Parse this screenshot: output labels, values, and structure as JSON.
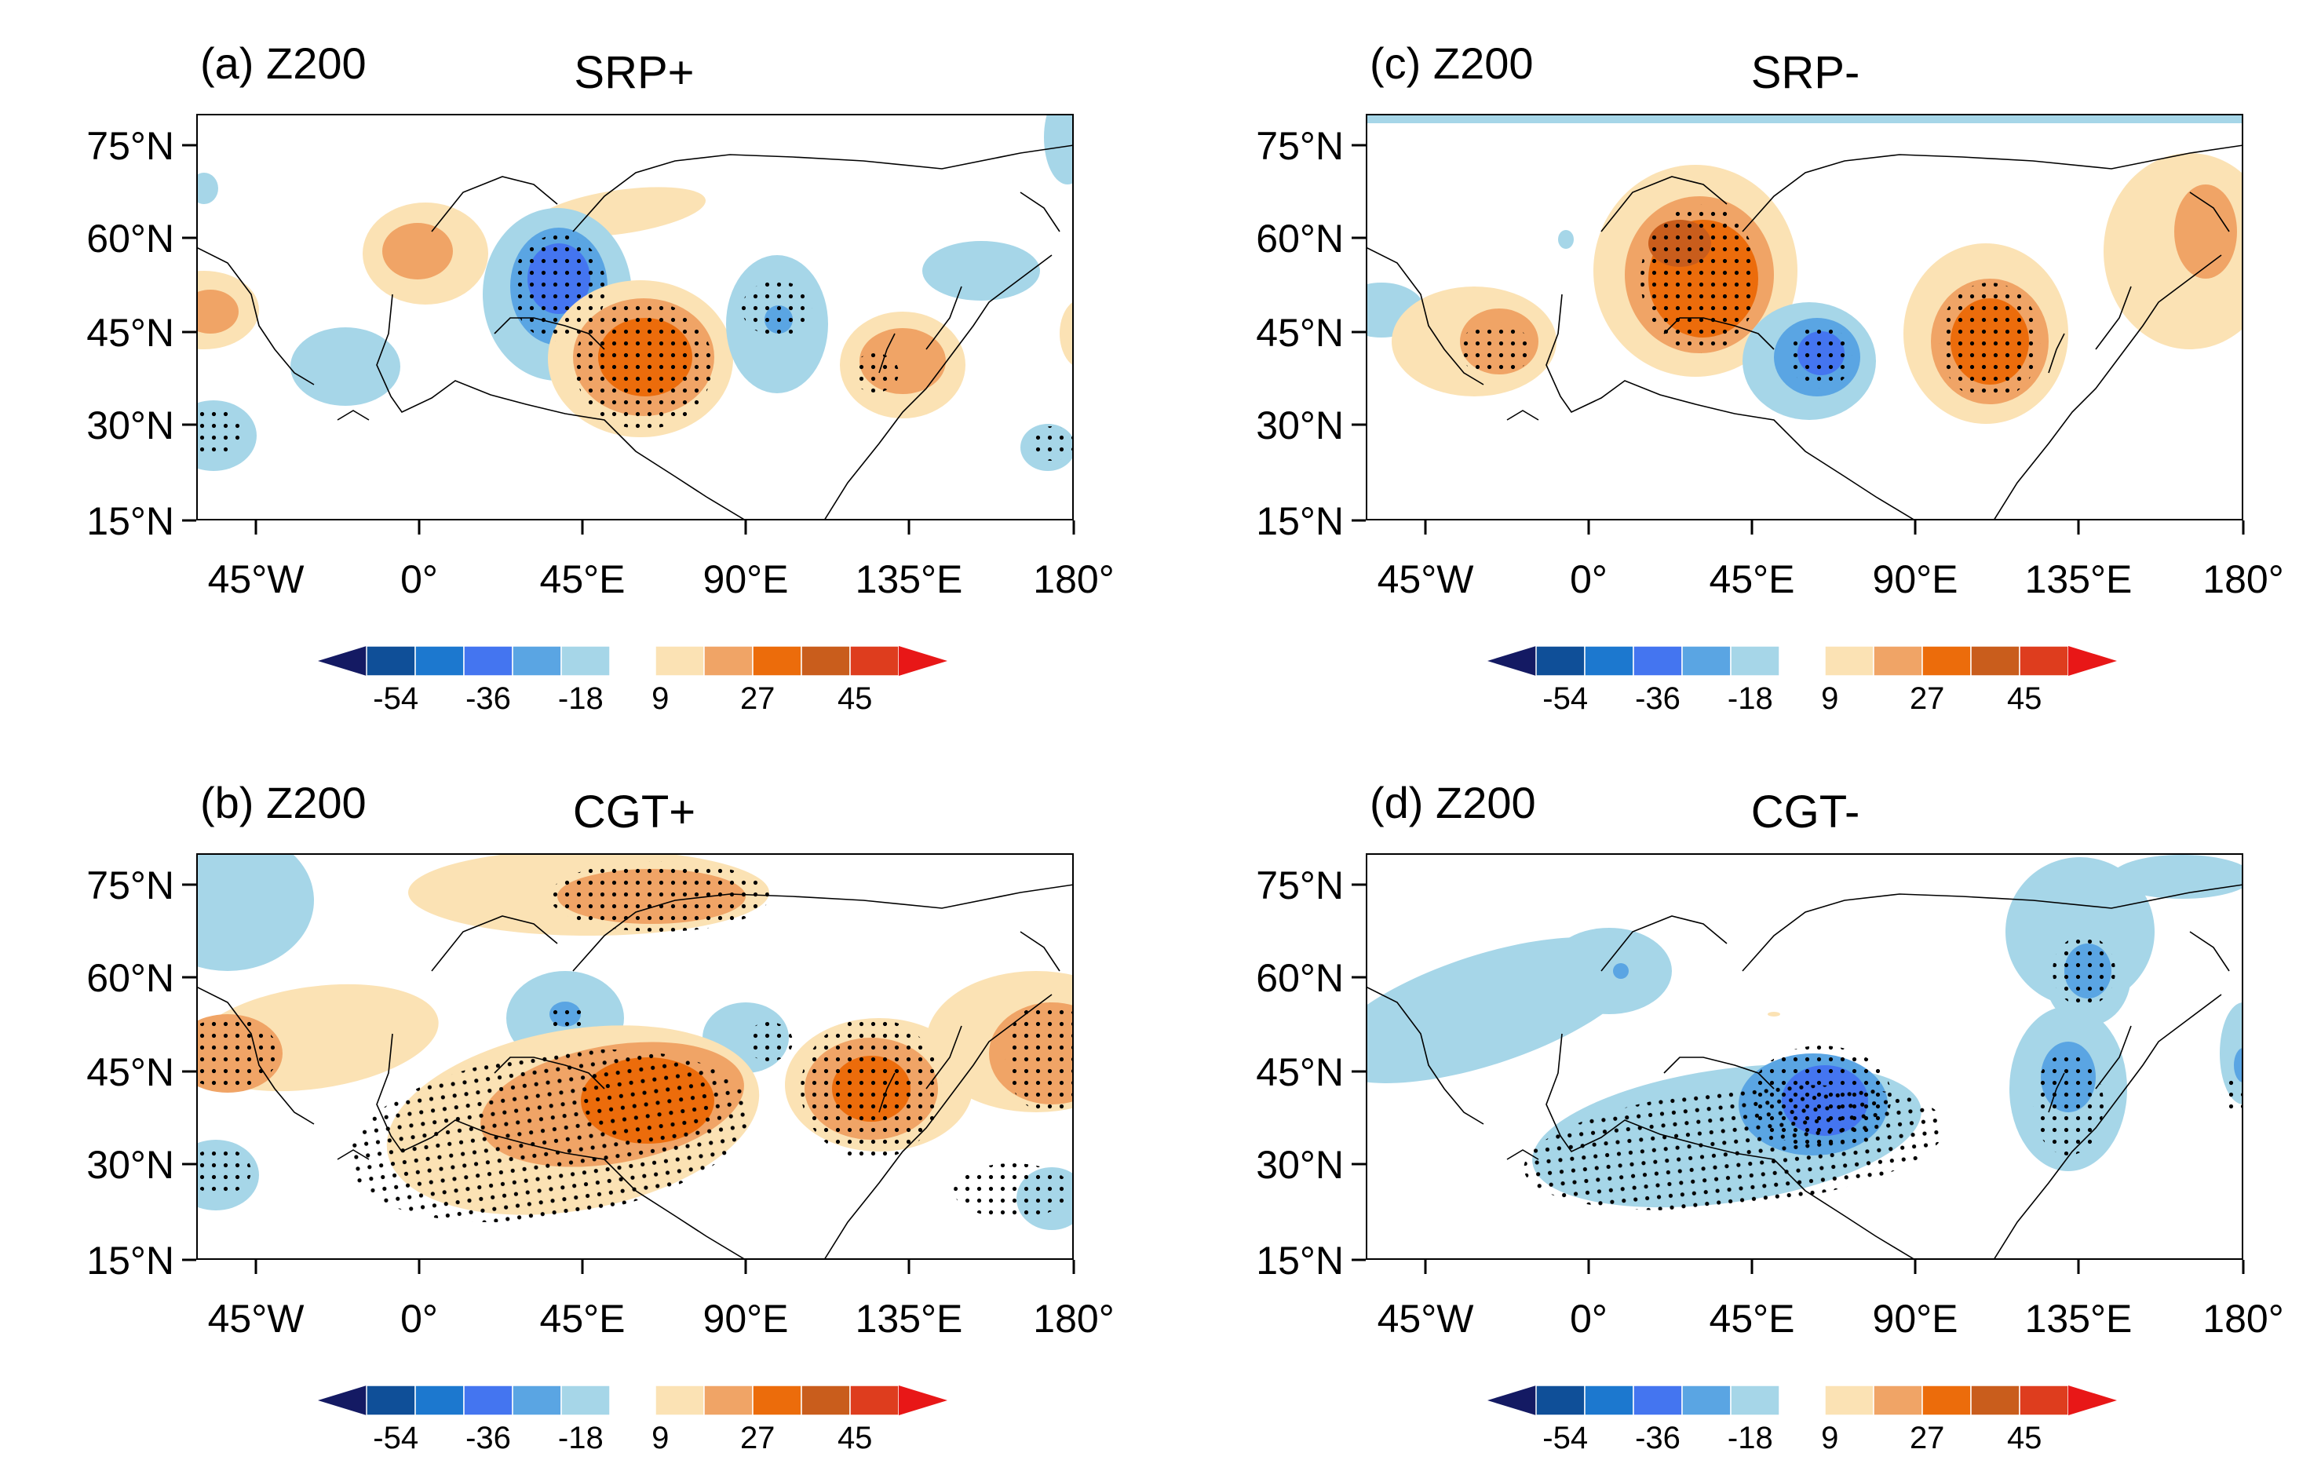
{
  "figure": {
    "colorbar": {
      "neg_colors": [
        "#141a63",
        "#0f4f98",
        "#1c78cf",
        "#4475f0",
        "#5aa5e3",
        "#a6d6e8"
      ],
      "pos_colors": [
        "#fbe2b4",
        "#f0a466",
        "#ec6c0b",
        "#c95d1c",
        "#de3d1e",
        "#e81717"
      ],
      "tick_labels": [
        "-54",
        "-36",
        "-18",
        "9",
        "27",
        "45"
      ]
    },
    "axes": {
      "lat_labels": [
        "75°N",
        "60°N",
        "45°N",
        "30°N",
        "15°N"
      ],
      "lon_labels": [
        "45°W",
        "0°",
        "45°E",
        "90°E",
        "135°E",
        "180°"
      ]
    },
    "panels": [
      {
        "id": "a",
        "tag": "(a) Z200",
        "title": "SRP+"
      },
      {
        "id": "b",
        "tag": "(b) Z200",
        "title": "CGT+"
      },
      {
        "id": "c",
        "tag": "(c) Z200",
        "title": "SRP-"
      },
      {
        "id": "d",
        "tag": "(d) Z200",
        "title": "CGT-"
      }
    ]
  }
}
